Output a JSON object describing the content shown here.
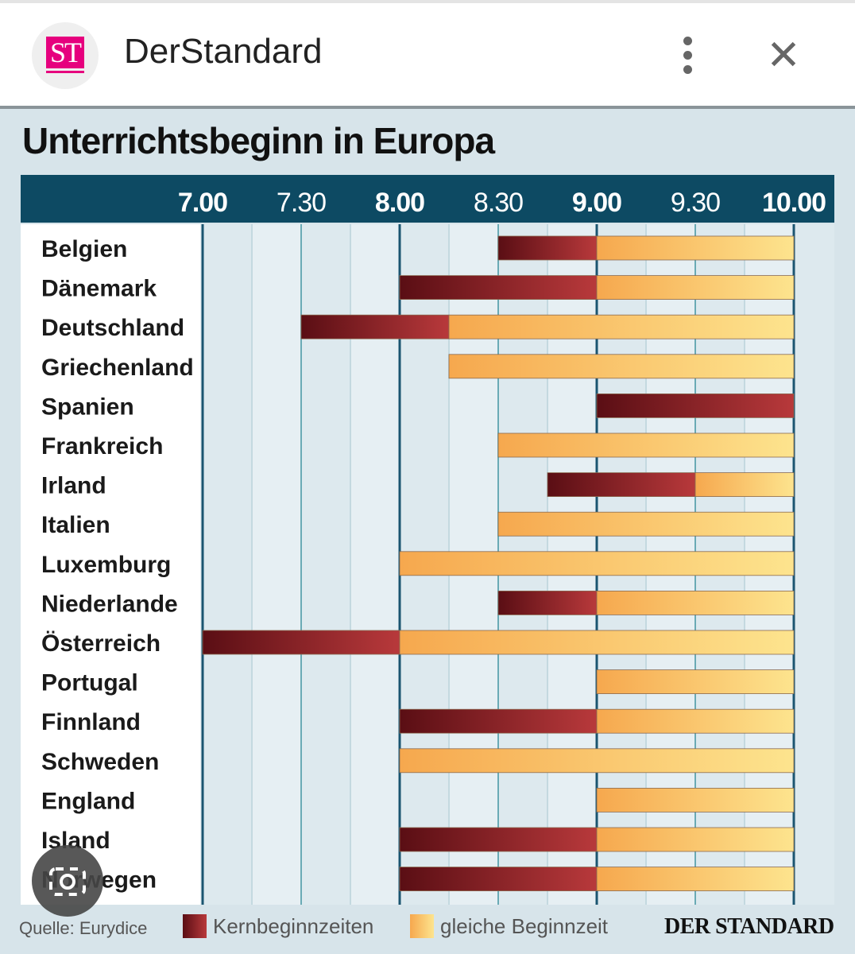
{
  "app_bar": {
    "logo_text": "ST",
    "title": "DerStandard",
    "more_icon": "more-vert-icon",
    "close_icon": "close-icon"
  },
  "lens_button": {
    "icon": "camera-lens-icon"
  },
  "chart_data": {
    "type": "bar",
    "subtype": "horizontal-range",
    "title": "Unterrichtsbeginn in Europa",
    "x_ticks": [
      "7.00",
      "7.30",
      "8.00",
      "8.30",
      "9.00",
      "9.30",
      "10.00"
    ],
    "xlim": [
      "7.00",
      "10.00"
    ],
    "grid": true,
    "categories": [
      "Belgien",
      "Dänemark",
      "Deutschland",
      "Griechenland",
      "Spanien",
      "Frankreich",
      "Irland",
      "Italien",
      "Luxemburg",
      "Niederlande",
      "Österreich",
      "Portugal",
      "Finnland",
      "Schweden",
      "England",
      "Island",
      "Norwegen"
    ],
    "series": [
      {
        "name": "Kernbeginnzeiten",
        "color": "#8b1e24",
        "ranges": [
          [
            "8.30",
            "9.00"
          ],
          [
            "8.00",
            "9.00"
          ],
          [
            "7.30",
            "8.15"
          ],
          null,
          [
            "9.00",
            "10.00"
          ],
          null,
          [
            "8.45",
            "9.30"
          ],
          null,
          null,
          [
            "8.30",
            "9.00"
          ],
          [
            "7.00",
            "8.00"
          ],
          null,
          [
            "8.00",
            "9.00"
          ],
          null,
          null,
          [
            "8.00",
            "9.00"
          ],
          [
            "8.00",
            "9.00"
          ]
        ]
      },
      {
        "name": "gleiche Beginnzeit",
        "color": "#fbc468",
        "ranges": [
          [
            "9.00",
            "10.00"
          ],
          [
            "9.00",
            "10.00"
          ],
          [
            "8.15",
            "10.00"
          ],
          [
            "8.15",
            "10.00"
          ],
          null,
          [
            "8.30",
            "10.00"
          ],
          [
            "9.30",
            "10.00"
          ],
          [
            "8.30",
            "10.00"
          ],
          [
            "8.00",
            "10.00"
          ],
          [
            "9.00",
            "10.00"
          ],
          [
            "8.00",
            "10.00"
          ],
          [
            "9.00",
            "10.00"
          ],
          [
            "9.00",
            "10.00"
          ],
          [
            "8.00",
            "10.00"
          ],
          [
            "9.00",
            "10.00"
          ],
          [
            "9.00",
            "10.00"
          ],
          [
            "9.00",
            "10.00"
          ]
        ]
      }
    ],
    "legend": "bottom",
    "source": "Quelle: Eurydice",
    "brand": "DER STANDARD"
  }
}
